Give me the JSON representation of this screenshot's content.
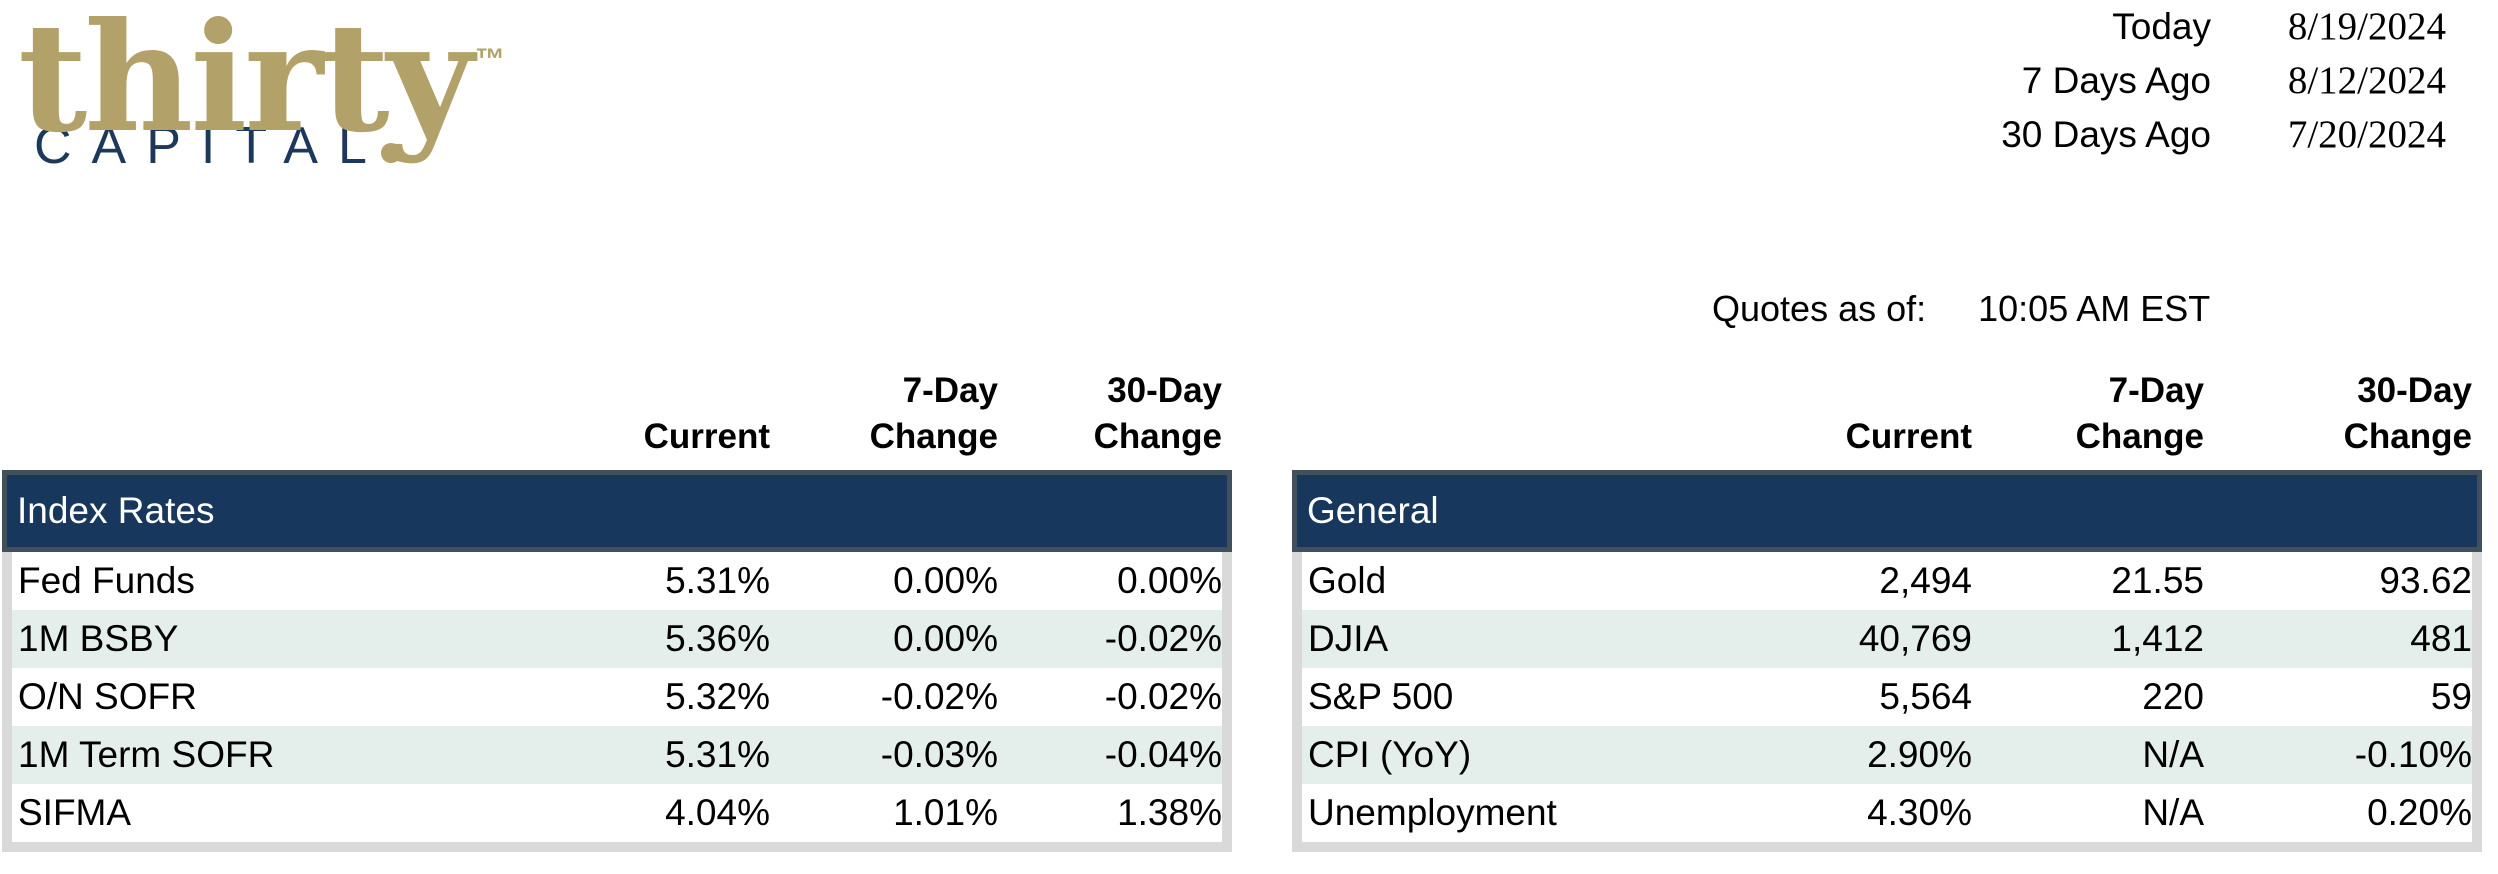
{
  "brand": {
    "name": "thirty",
    "trademark": "TM",
    "subtitle": "CAPITAL",
    "gold_color": "#b2a169",
    "navy_color": "#1c395c"
  },
  "date_panel": {
    "rows": [
      {
        "label": "Today",
        "date": "8/19/2024"
      },
      {
        "label": "7 Days Ago",
        "date": "8/12/2024"
      },
      {
        "label": "30 Days Ago",
        "date": "7/20/2024"
      }
    ]
  },
  "quotes": {
    "label": "Quotes as of:",
    "time": "10:05 AM EST"
  },
  "column_headers": {
    "current": "Current",
    "d7_line1": "7-Day",
    "d7_line2": "Change",
    "d30_line1": "30-Day",
    "d30_line2": "Change"
  },
  "index_rates": {
    "title": "Index Rates",
    "rows": [
      {
        "label": "Fed Funds",
        "current": "5.31%",
        "change7": "0.00%",
        "change30": "0.00%"
      },
      {
        "label": "1M BSBY",
        "current": "5.36%",
        "change7": "0.00%",
        "change30": "-0.02%"
      },
      {
        "label": "O/N SOFR",
        "current": "5.32%",
        "change7": "-0.02%",
        "change30": "-0.02%"
      },
      {
        "label": "1M Term SOFR",
        "current": "5.31%",
        "change7": "-0.03%",
        "change30": "-0.04%"
      },
      {
        "label": "SIFMA",
        "current": "4.04%",
        "change7": "1.01%",
        "change30": "1.38%"
      }
    ]
  },
  "general": {
    "title": "General",
    "rows": [
      {
        "label": "Gold",
        "current": "2,494",
        "change7": "21.55",
        "change30": "93.62"
      },
      {
        "label": "DJIA",
        "current": "40,769",
        "change7": "1,412",
        "change30": "481"
      },
      {
        "label": "S&P 500",
        "current": "5,564",
        "change7": "220",
        "change30": "59"
      },
      {
        "label": "CPI (YoY)",
        "current": "2.90%",
        "change7": "N/A",
        "change30": "-0.10%"
      },
      {
        "label": "Unemployment",
        "current": "4.30%",
        "change7": "N/A",
        "change30": "0.20%"
      }
    ]
  },
  "colors": {
    "header_band": "#17375c",
    "band_border": "#42505c",
    "alt_row": "#e4efec",
    "table_edge": "#d9d9d9",
    "text": "#000000"
  }
}
